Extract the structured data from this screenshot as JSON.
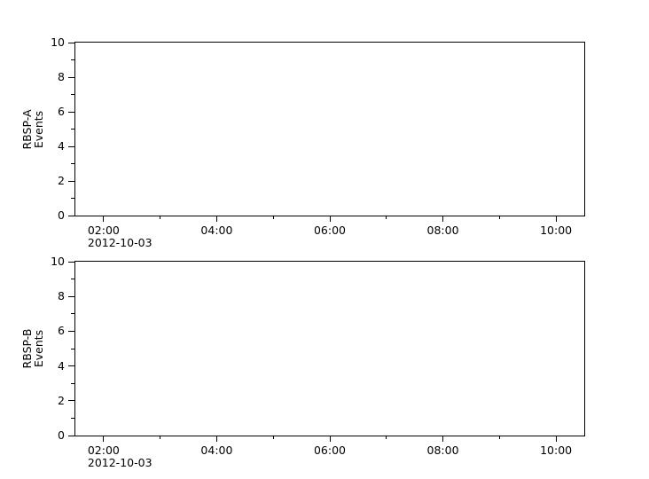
{
  "figure": {
    "background_color": "#ffffff",
    "axis_color": "#000000",
    "text_color": "#000000"
  },
  "chart_data": [
    {
      "type": "line",
      "panel": "top",
      "ylabel": "RBSP-A\nEvents",
      "date_label": "2012-10-03",
      "x_axis": {
        "range_hours": [
          1.5,
          10.5
        ],
        "major_ticks": [
          {
            "hour": 2,
            "label": "02:00"
          },
          {
            "hour": 4,
            "label": "04:00"
          },
          {
            "hour": 6,
            "label": "06:00"
          },
          {
            "hour": 8,
            "label": "08:00"
          },
          {
            "hour": 10,
            "label": "10:00"
          }
        ],
        "minor_tick_hours": [
          3,
          5,
          7,
          9
        ]
      },
      "y_axis": {
        "lim": [
          0,
          10
        ],
        "major_ticks": [
          {
            "value": 0,
            "label": "0"
          },
          {
            "value": 2,
            "label": "2"
          },
          {
            "value": 4,
            "label": "4"
          },
          {
            "value": 6,
            "label": "6"
          },
          {
            "value": 8,
            "label": "8"
          },
          {
            "value": 10,
            "label": "10"
          }
        ],
        "minor_tick_values": [
          1,
          3,
          5,
          7,
          9
        ]
      },
      "grid": false,
      "series": []
    },
    {
      "type": "line",
      "panel": "bottom",
      "ylabel": "RBSP-B\nEvents",
      "date_label": "2012-10-03",
      "x_axis": {
        "range_hours": [
          1.5,
          10.5
        ],
        "major_ticks": [
          {
            "hour": 2,
            "label": "02:00"
          },
          {
            "hour": 4,
            "label": "04:00"
          },
          {
            "hour": 6,
            "label": "06:00"
          },
          {
            "hour": 8,
            "label": "08:00"
          },
          {
            "hour": 10,
            "label": "10:00"
          }
        ],
        "minor_tick_hours": [
          3,
          5,
          7,
          9
        ]
      },
      "y_axis": {
        "lim": [
          0,
          10
        ],
        "major_ticks": [
          {
            "value": 0,
            "label": "0"
          },
          {
            "value": 2,
            "label": "2"
          },
          {
            "value": 4,
            "label": "4"
          },
          {
            "value": 6,
            "label": "6"
          },
          {
            "value": 8,
            "label": "8"
          },
          {
            "value": 10,
            "label": "10"
          }
        ],
        "minor_tick_values": [
          1,
          3,
          5,
          7,
          9
        ]
      },
      "grid": false,
      "series": []
    }
  ]
}
